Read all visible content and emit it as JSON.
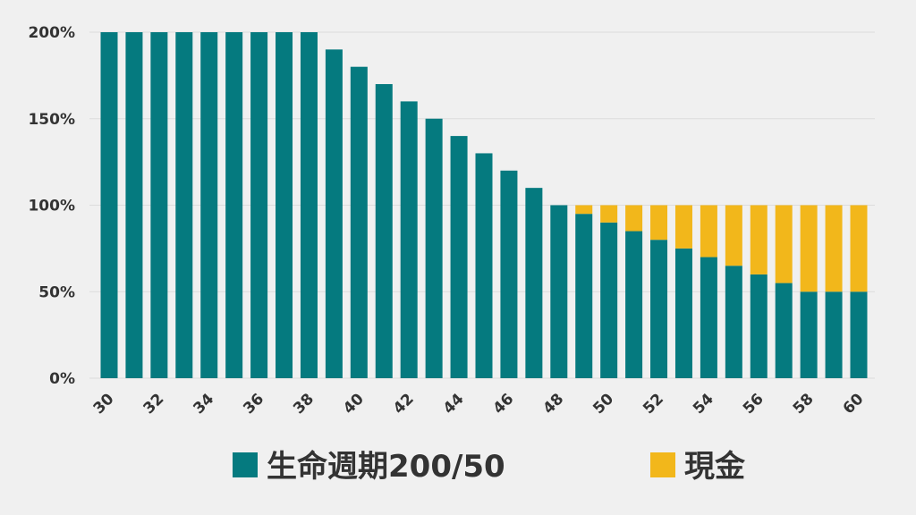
{
  "chart_data": {
    "type": "bar",
    "stacked": true,
    "x": [
      30,
      31,
      32,
      33,
      34,
      35,
      36,
      37,
      38,
      39,
      40,
      41,
      42,
      43,
      44,
      45,
      46,
      47,
      48,
      49,
      50,
      51,
      52,
      53,
      54,
      55,
      56,
      57,
      58,
      59,
      60
    ],
    "x_tick_labels": [
      "30",
      "32",
      "34",
      "36",
      "38",
      "40",
      "42",
      "44",
      "46",
      "48",
      "50",
      "52",
      "54",
      "56",
      "58",
      "60"
    ],
    "y_tick_labels": [
      "0%",
      "50%",
      "100%",
      "150%",
      "200%"
    ],
    "ylim": [
      0,
      200
    ],
    "grid": true,
    "legend_position": "bottom",
    "series": [
      {
        "name": "生命週期200/50",
        "color": "#057a7f",
        "values": [
          200,
          200,
          200,
          200,
          200,
          200,
          200,
          200,
          200,
          190,
          180,
          170,
          160,
          150,
          140,
          130,
          120,
          110,
          100,
          95,
          90,
          85,
          80,
          75,
          70,
          65,
          60,
          55,
          50,
          50,
          50
        ]
      },
      {
        "name": "現金",
        "color": "#f2b71b",
        "values": [
          0,
          0,
          0,
          0,
          0,
          0,
          0,
          0,
          0,
          0,
          0,
          0,
          0,
          0,
          0,
          0,
          0,
          0,
          0,
          5,
          10,
          15,
          20,
          25,
          30,
          35,
          40,
          45,
          50,
          50,
          50
        ]
      }
    ]
  }
}
